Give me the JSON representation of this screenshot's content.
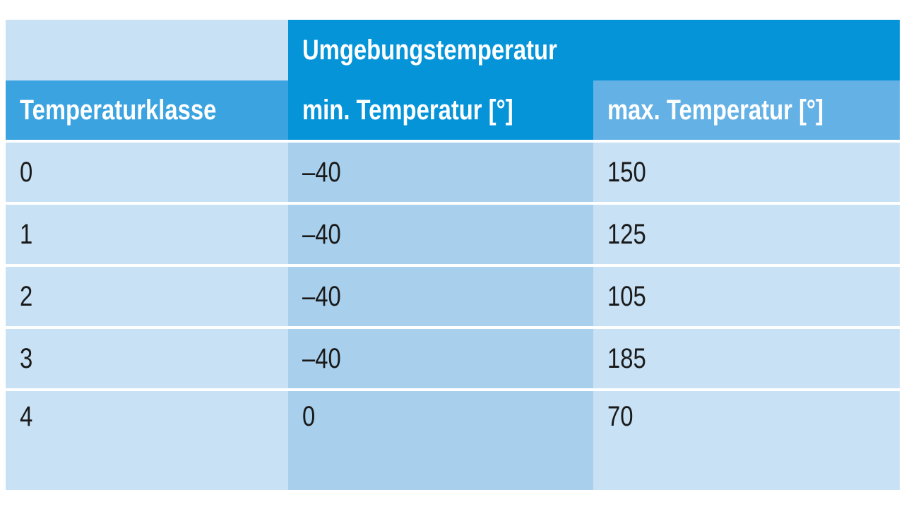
{
  "table": {
    "group_header": "Umgebungstemperatur",
    "columns": [
      "Temperaturklasse",
      "min. Temperatur [°]",
      "max. Temperatur [°]"
    ],
    "rows": [
      {
        "klasse": "0",
        "min": "–40",
        "max": "150"
      },
      {
        "klasse": "1",
        "min": "–40",
        "max": "125"
      },
      {
        "klasse": "2",
        "min": "–40",
        "max": "105"
      },
      {
        "klasse": "3",
        "min": "–40",
        "max": "185"
      },
      {
        "klasse": "4",
        "min": "0",
        "max": "70"
      }
    ]
  },
  "colors": {
    "header_dark": "#0594d8",
    "header_light": "#3aa3e0",
    "header_sky": "#64b1e6",
    "cell_pale": "#c8e1f5",
    "cell_mid": "#a8cfec"
  }
}
